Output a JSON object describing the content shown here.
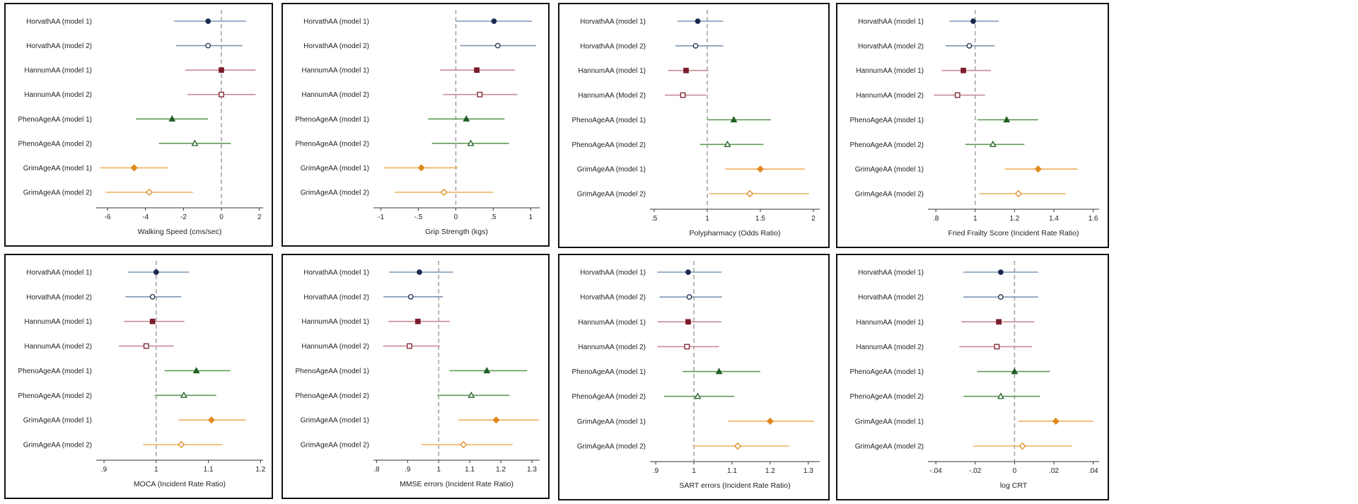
{
  "style": {
    "ref_line": "#a6a6a6",
    "families": [
      {
        "match": "Horvath",
        "line": "#7d96b4",
        "marker": "#1b2a4e",
        "shape": "circle"
      },
      {
        "match": "Hannum",
        "line": "#c98a93",
        "marker": "#7a1c2a",
        "shape": "square"
      },
      {
        "match": "Pheno",
        "line": "#5e9a55",
        "marker": "#1f5e24",
        "shape": "triangle"
      },
      {
        "match": "Grim",
        "line": "#eeb05a",
        "marker": "#e08a1e",
        "shape": "diamond"
      }
    ]
  },
  "chart_data": [
    {
      "type": "forest",
      "xlabel": "Walking Speed (cms/sec)",
      "xticks": [
        {
          "v": -6,
          "label": "-6"
        },
        {
          "v": -4,
          "label": "-4"
        },
        {
          "v": -2,
          "label": "-2"
        },
        {
          "v": 0,
          "label": "0"
        },
        {
          "v": 2,
          "label": "2"
        }
      ],
      "xlim": [
        -6.6,
        2.2
      ],
      "ref": 0,
      "rows": [
        {
          "label": "HorvathAA (model 1)",
          "est": -0.7,
          "lo": -2.5,
          "hi": 1.3,
          "filled": true
        },
        {
          "label": "HorvathAA (model 2)",
          "est": -0.7,
          "lo": -2.4,
          "hi": 1.1,
          "filled": false
        },
        {
          "label": "HannumAA (model 1)",
          "est": 0.0,
          "lo": -1.9,
          "hi": 1.8,
          "filled": true
        },
        {
          "label": "HannumAA (model 2)",
          "est": 0.0,
          "lo": -1.8,
          "hi": 1.8,
          "filled": false
        },
        {
          "label": "PhenoAgeAA (model 1)",
          "est": -2.6,
          "lo": -4.5,
          "hi": -0.7,
          "filled": true
        },
        {
          "label": "PhenoAgeAA (model 2)",
          "est": -1.4,
          "lo": -3.3,
          "hi": 0.5,
          "filled": false
        },
        {
          "label": "GrimAgeAA (model 1)",
          "est": -4.6,
          "lo": -6.4,
          "hi": -2.8,
          "filled": true
        },
        {
          "label": "GrimAgeAA (model 2)",
          "est": -3.8,
          "lo": -6.1,
          "hi": -1.5,
          "filled": false
        }
      ]
    },
    {
      "type": "forest",
      "xlabel": "Grip Strength (kgs)",
      "xticks": [
        {
          "v": -1,
          "label": "-1"
        },
        {
          "v": -0.5,
          "label": "-.5"
        },
        {
          "v": 0,
          "label": "0"
        },
        {
          "v": 0.5,
          "label": ".5"
        },
        {
          "v": 1,
          "label": "1"
        }
      ],
      "xlim": [
        -1.1,
        1.12
      ],
      "ref": 0,
      "rows": [
        {
          "label": "HorvathAA (model 1)",
          "est": 0.51,
          "lo": 0.0,
          "hi": 1.02,
          "filled": true
        },
        {
          "label": "HorvathAA (model 2)",
          "est": 0.56,
          "lo": 0.06,
          "hi": 1.07,
          "filled": false
        },
        {
          "label": "HannumAA (model 1)",
          "est": 0.28,
          "lo": -0.21,
          "hi": 0.79,
          "filled": true
        },
        {
          "label": "HannumAA (model 2)",
          "est": 0.32,
          "lo": -0.17,
          "hi": 0.82,
          "filled": false
        },
        {
          "label": "PhenoAgeAA (model 1)",
          "est": 0.14,
          "lo": -0.37,
          "hi": 0.65,
          "filled": true
        },
        {
          "label": "PhenoAgeAA (model 2)",
          "est": 0.2,
          "lo": -0.32,
          "hi": 0.71,
          "filled": false
        },
        {
          "label": "GrimAgeAA (model 1)",
          "est": -0.46,
          "lo": -0.96,
          "hi": 0.03,
          "filled": true
        },
        {
          "label": "GrimAgeAA (model 2)",
          "est": -0.16,
          "lo": -0.82,
          "hi": 0.5,
          "filled": false
        }
      ]
    },
    {
      "type": "forest",
      "xlabel": "Polypharmacy (Odds Ratio)",
      "xticks": [
        {
          "v": 0.5,
          "label": ".5"
        },
        {
          "v": 1,
          "label": "1"
        },
        {
          "v": 1.5,
          "label": "1.5"
        },
        {
          "v": 2,
          "label": "2"
        }
      ],
      "xlim": [
        0.46,
        2.06
      ],
      "ref": 1,
      "rows": [
        {
          "label": "HorvathAA (model 1)",
          "est": 0.91,
          "lo": 0.72,
          "hi": 1.15,
          "filled": true
        },
        {
          "label": "HorvathAA (model 2)",
          "est": 0.89,
          "lo": 0.7,
          "hi": 1.15,
          "filled": false
        },
        {
          "label": "HannumAA (model 1)",
          "est": 0.8,
          "lo": 0.63,
          "hi": 1.01,
          "filled": true
        },
        {
          "label": "HannumAA (Model 2)",
          "est": 0.77,
          "lo": 0.6,
          "hi": 0.99,
          "filled": false
        },
        {
          "label": "PhenoAgeAA (model 1)",
          "est": 1.25,
          "lo": 1.0,
          "hi": 1.6,
          "filled": true
        },
        {
          "label": "PhenoAgeAA (model 2)",
          "est": 1.19,
          "lo": 0.93,
          "hi": 1.53,
          "filled": false
        },
        {
          "label": "GrimAgeAA (model 1)",
          "est": 1.5,
          "lo": 1.17,
          "hi": 1.92,
          "filled": true
        },
        {
          "label": "GrimAgeAA (model 2)",
          "est": 1.4,
          "lo": 1.02,
          "hi": 1.96,
          "filled": false
        }
      ]
    },
    {
      "type": "forest",
      "xlabel": "Fried Frailty Score (Incident Rate Ratio)",
      "xticks": [
        {
          "v": 0.8,
          "label": ".8"
        },
        {
          "v": 1,
          "label": "1"
        },
        {
          "v": 1.2,
          "label": "1.2"
        },
        {
          "v": 1.4,
          "label": "1.4"
        },
        {
          "v": 1.6,
          "label": "1.6"
        }
      ],
      "xlim": [
        0.76,
        1.63
      ],
      "ref": 1,
      "rows": [
        {
          "label": "HorvathAA (model 1)",
          "est": 0.99,
          "lo": 0.87,
          "hi": 1.12,
          "filled": true
        },
        {
          "label": "HorvathAA (model 2)",
          "est": 0.97,
          "lo": 0.85,
          "hi": 1.1,
          "filled": false
        },
        {
          "label": "HannumAA (model 1)",
          "est": 0.94,
          "lo": 0.83,
          "hi": 1.08,
          "filled": true
        },
        {
          "label": "HannumAA (model 2)",
          "est": 0.91,
          "lo": 0.79,
          "hi": 1.05,
          "filled": false
        },
        {
          "label": "PhenoAgeAA (model 1)",
          "est": 1.16,
          "lo": 1.01,
          "hi": 1.32,
          "filled": true
        },
        {
          "label": "PhenoAgeAA (model 2)",
          "est": 1.09,
          "lo": 0.95,
          "hi": 1.25,
          "filled": false
        },
        {
          "label": "GrimAgeAA (model 1)",
          "est": 1.32,
          "lo": 1.15,
          "hi": 1.52,
          "filled": true
        },
        {
          "label": "GrimAgeAA (model 2)",
          "est": 1.22,
          "lo": 1.02,
          "hi": 1.46,
          "filled": false
        }
      ]
    },
    {
      "type": "forest",
      "xlabel": "MOCA (Incident Rate Ratio)",
      "xticks": [
        {
          "v": 0.9,
          "label": ".9"
        },
        {
          "v": 1,
          "label": "1"
        },
        {
          "v": 1.1,
          "label": "1.1"
        },
        {
          "v": 1.2,
          "label": "1.2"
        }
      ],
      "xlim": [
        0.885,
        1.205
      ],
      "ref": 1,
      "rows": [
        {
          "label": "HorvathAA (model 1)",
          "est": 1.0,
          "lo": 0.946,
          "hi": 1.063,
          "filled": true
        },
        {
          "label": "HorvathAA (model 2)",
          "est": 0.993,
          "lo": 0.941,
          "hi": 1.048,
          "filled": false
        },
        {
          "label": "HannumAA (model 1)",
          "est": 0.993,
          "lo": 0.938,
          "hi": 1.054,
          "filled": true
        },
        {
          "label": "HannumAA (model 2)",
          "est": 0.981,
          "lo": 0.928,
          "hi": 1.034,
          "filled": false
        },
        {
          "label": "PhenoAgeAA (model 1)",
          "est": 1.077,
          "lo": 1.016,
          "hi": 1.142,
          "filled": true
        },
        {
          "label": "PhenoAgeAA (model 2)",
          "est": 1.053,
          "lo": 0.997,
          "hi": 1.115,
          "filled": false
        },
        {
          "label": "GrimAgeAA (model 1)",
          "est": 1.106,
          "lo": 1.043,
          "hi": 1.172,
          "filled": true
        },
        {
          "label": "GrimAgeAA (model 2)",
          "est": 1.048,
          "lo": 0.975,
          "hi": 1.127,
          "filled": false
        }
      ]
    },
    {
      "type": "forest",
      "xlabel": "MMSE errors (Incident Rate Ratio)",
      "xticks": [
        {
          "v": 0.8,
          "label": ".8"
        },
        {
          "v": 0.9,
          "label": ".9"
        },
        {
          "v": 1,
          "label": "1"
        },
        {
          "v": 1.1,
          "label": "1.1"
        },
        {
          "v": 1.2,
          "label": "1.2"
        },
        {
          "v": 1.3,
          "label": "1.3"
        }
      ],
      "xlim": [
        0.79,
        1.325
      ],
      "ref": 1,
      "rows": [
        {
          "label": "HorvathAA (model 1)",
          "est": 0.938,
          "lo": 0.84,
          "hi": 1.046,
          "filled": true
        },
        {
          "label": "HorvathAA (model 2)",
          "est": 0.91,
          "lo": 0.822,
          "hi": 1.014,
          "filled": false
        },
        {
          "label": "HannumAA (model 1)",
          "est": 0.933,
          "lo": 0.838,
          "hi": 1.036,
          "filled": true
        },
        {
          "label": "HannumAA (model 2)",
          "est": 0.906,
          "lo": 0.821,
          "hi": 1.005,
          "filled": false
        },
        {
          "label": "PhenoAgeAA (model 1)",
          "est": 1.155,
          "lo": 1.035,
          "hi": 1.285,
          "filled": true
        },
        {
          "label": "PhenoAgeAA (model 2)",
          "est": 1.105,
          "lo": 0.995,
          "hi": 1.228,
          "filled": false
        },
        {
          "label": "GrimAgeAA (model 1)",
          "est": 1.185,
          "lo": 1.063,
          "hi": 1.322,
          "filled": true
        },
        {
          "label": "GrimAgeAA (model 2)",
          "est": 1.08,
          "lo": 0.945,
          "hi": 1.238,
          "filled": false
        }
      ]
    },
    {
      "type": "forest",
      "xlabel": "SART errors (Incident Rate Ratio)",
      "xticks": [
        {
          "v": 0.9,
          "label": ".9"
        },
        {
          "v": 1,
          "label": "1"
        },
        {
          "v": 1.1,
          "label": "1.1"
        },
        {
          "v": 1.2,
          "label": "1.2"
        },
        {
          "v": 1.3,
          "label": "1.3"
        }
      ],
      "xlim": [
        0.885,
        1.33
      ],
      "ref": 1,
      "rows": [
        {
          "label": "HorvathAA (model 1)",
          "est": 0.985,
          "lo": 0.904,
          "hi": 1.073,
          "filled": true
        },
        {
          "label": "HorvathAA (model 2)",
          "est": 0.988,
          "lo": 0.91,
          "hi": 1.074,
          "filled": false
        },
        {
          "label": "HannumAA (model 1)",
          "est": 0.985,
          "lo": 0.905,
          "hi": 1.072,
          "filled": true
        },
        {
          "label": "HannumAA (model 2)",
          "est": 0.982,
          "lo": 0.904,
          "hi": 1.066,
          "filled": false
        },
        {
          "label": "PhenoAgeAA (model 1)",
          "est": 1.066,
          "lo": 0.97,
          "hi": 1.174,
          "filled": true
        },
        {
          "label": "PhenoAgeAA (model 2)",
          "est": 1.01,
          "lo": 0.922,
          "hi": 1.106,
          "filled": false
        },
        {
          "label": "GrimAgeAA (model 1)",
          "est": 1.2,
          "lo": 1.09,
          "hi": 1.315,
          "filled": true
        },
        {
          "label": "GrimAgeAA (model 2)",
          "est": 1.115,
          "lo": 0.997,
          "hi": 1.25,
          "filled": false
        }
      ]
    },
    {
      "type": "forest",
      "xlabel": "log CRT",
      "xticks": [
        {
          "v": -0.04,
          "label": "-.04"
        },
        {
          "v": -0.02,
          "label": "-.02"
        },
        {
          "v": 0,
          "label": "0"
        },
        {
          "v": 0.02,
          "label": ".02"
        },
        {
          "v": 0.04,
          "label": ".04"
        }
      ],
      "xlim": [
        -0.044,
        0.043
      ],
      "ref": 0,
      "rows": [
        {
          "label": "HorvathAA (model 1)",
          "est": -0.007,
          "lo": -0.026,
          "hi": 0.012,
          "filled": true
        },
        {
          "label": "HorvathAA (model 2)",
          "est": -0.007,
          "lo": -0.026,
          "hi": 0.012,
          "filled": false
        },
        {
          "label": "HannumAA (model 1)",
          "est": -0.008,
          "lo": -0.027,
          "hi": 0.01,
          "filled": true
        },
        {
          "label": "HannumAA (model 2)",
          "est": -0.009,
          "lo": -0.028,
          "hi": 0.009,
          "filled": false
        },
        {
          "label": "PhenoAgeAA (model 1)",
          "est": 0.0,
          "lo": -0.019,
          "hi": 0.018,
          "filled": true
        },
        {
          "label": "PhenoAgeAA (model 2)",
          "est": -0.007,
          "lo": -0.026,
          "hi": 0.013,
          "filled": false
        },
        {
          "label": "GrimAgeAA (model 1)",
          "est": 0.021,
          "lo": 0.002,
          "hi": 0.04,
          "filled": true
        },
        {
          "label": "GrimAgeAA (model 2)",
          "est": 0.004,
          "lo": -0.021,
          "hi": 0.029,
          "filled": false
        }
      ]
    }
  ]
}
